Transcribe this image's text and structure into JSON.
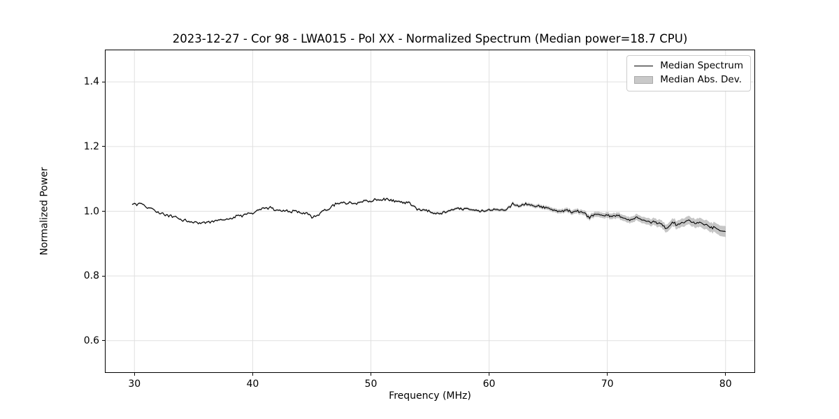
{
  "chart_data": {
    "type": "line",
    "title": "2023-12-27 - Cor 98 - LWA015 - Pol XX - Normalized Spectrum (Median power=18.7 CPU)",
    "xlabel": "Frequency (MHz)",
    "ylabel": "Normalized Power",
    "xlim": [
      27.5,
      82.5
    ],
    "ylim": [
      0.5,
      1.5
    ],
    "grid": true,
    "xticks": [
      {
        "v": 30,
        "label": "30"
      },
      {
        "v": 40,
        "label": "40"
      },
      {
        "v": 50,
        "label": "50"
      },
      {
        "v": 60,
        "label": "60"
      },
      {
        "v": 70,
        "label": "70"
      },
      {
        "v": 80,
        "label": "80"
      }
    ],
    "yticks": [
      {
        "v": 0.6,
        "label": "0.6"
      },
      {
        "v": 0.8,
        "label": "0.8"
      },
      {
        "v": 1.0,
        "label": "1.0"
      },
      {
        "v": 1.2,
        "label": "1.2"
      },
      {
        "v": 1.4,
        "label": "1.4"
      }
    ],
    "legend": {
      "position": "upper right",
      "entries": [
        {
          "label": "Median Spectrum",
          "type": "line",
          "color": "#000000"
        },
        {
          "label": "Median Abs. Dev.",
          "type": "patch",
          "color": "#c9c9c9"
        }
      ]
    },
    "series": [
      {
        "name": "Median Spectrum",
        "x_start": 30.0,
        "x_step": 0.5,
        "x_end": 80.0,
        "y": [
          1.02,
          1.023,
          1.013,
          1.006,
          0.999,
          0.992,
          0.986,
          0.98,
          0.974,
          0.969,
          0.967,
          0.965,
          0.966,
          0.967,
          0.969,
          0.972,
          0.976,
          0.982,
          0.987,
          0.992,
          0.997,
          1.001,
          1.008,
          1.01,
          1.006,
          1.002,
          1.0,
          0.999,
          0.997,
          0.992,
          0.982,
          0.99,
          1.003,
          1.012,
          1.02,
          1.026,
          1.028,
          1.023,
          1.027,
          1.03,
          1.033,
          1.035,
          1.036,
          1.034,
          1.03,
          1.028,
          1.027,
          1.017,
          1.007,
          1.002,
          0.999,
          0.996,
          0.995,
          0.999,
          1.005,
          1.007,
          1.008,
          1.005,
          1.003,
          1.004,
          1.002,
          1.005,
          1.007,
          1.004,
          1.023,
          1.017,
          1.021,
          1.019,
          1.016,
          1.013,
          1.008,
          1.001,
          0.998,
          1.003,
          0.997,
          1.001,
          0.995,
          0.977,
          0.99,
          0.986,
          0.986,
          0.984,
          0.986,
          0.981,
          0.974,
          0.978,
          0.972,
          0.969,
          0.966,
          0.961,
          0.944,
          0.963,
          0.959,
          0.965,
          0.97,
          0.965,
          0.961,
          0.954,
          0.949,
          0.944,
          0.934
        ]
      },
      {
        "name": "Median Abs. Dev.",
        "x": [
          30,
          40,
          50,
          55,
          60,
          63,
          65,
          67,
          69,
          71,
          73,
          75,
          77,
          79,
          80
        ],
        "halfwidth": [
          0.0025,
          0.0025,
          0.003,
          0.0035,
          0.004,
          0.005,
          0.006,
          0.007,
          0.008,
          0.009,
          0.01,
          0.012,
          0.013,
          0.015,
          0.017
        ]
      }
    ],
    "noise": {
      "seed": 12345,
      "step_mhz": 0.1,
      "amplitude_fine": 0.0035,
      "amplitude_slow": 0.0025
    },
    "style": {
      "line_color": "#000000",
      "line_width": 1.1,
      "band_fill": "rgba(128,128,128,0.45)",
      "grid_color": "#e0e0e0",
      "spine_color": "#000000",
      "background": "#ffffff"
    }
  }
}
